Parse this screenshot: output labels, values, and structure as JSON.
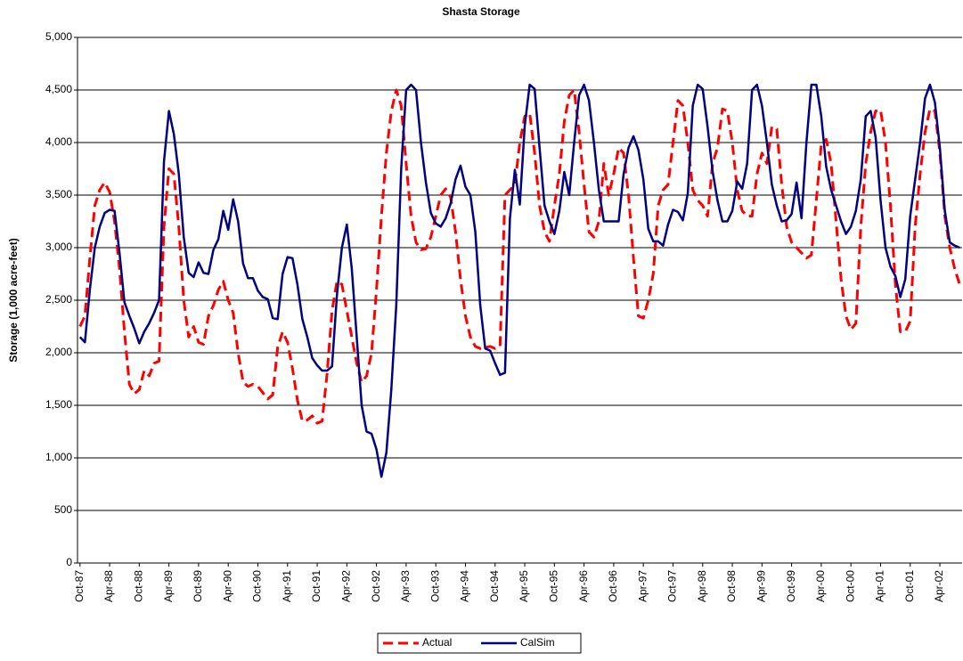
{
  "chart_data": {
    "type": "line",
    "title": "Shasta Storage",
    "y_label": "Storage (1,000 acre-feet)",
    "categories": [
      "Oct-87",
      null,
      null,
      null,
      null,
      null,
      "Apr-88",
      null,
      null,
      null,
      null,
      null,
      "Oct-88",
      null,
      null,
      null,
      null,
      null,
      "Apr-89",
      null,
      null,
      null,
      null,
      null,
      "Oct-89",
      null,
      null,
      null,
      null,
      null,
      "Apr-90",
      null,
      null,
      null,
      null,
      null,
      "Oct-90",
      null,
      null,
      null,
      null,
      null,
      "Apr-91",
      null,
      null,
      null,
      null,
      null,
      "Oct-91",
      null,
      null,
      null,
      null,
      null,
      "Apr-92",
      null,
      null,
      null,
      null,
      null,
      "Oct-92",
      null,
      null,
      null,
      null,
      null,
      "Apr-93",
      null,
      null,
      null,
      null,
      null,
      "Oct-93",
      null,
      null,
      null,
      null,
      null,
      "Apr-94",
      null,
      null,
      null,
      null,
      null,
      "Oct-94",
      null,
      null,
      null,
      null,
      null,
      "Apr-95",
      null,
      null,
      null,
      null,
      null,
      "Oct-95",
      null,
      null,
      null,
      null,
      null,
      "Apr-96",
      null,
      null,
      null,
      null,
      null,
      "Oct-96",
      null,
      null,
      null,
      null,
      null,
      "Apr-97",
      null,
      null,
      null,
      null,
      null,
      "Oct-97",
      null,
      null,
      null,
      null,
      null,
      "Apr-98",
      null,
      null,
      null,
      null,
      null,
      "Oct-98",
      null,
      null,
      null,
      null,
      null,
      "Apr-99",
      null,
      null,
      null,
      null,
      null,
      "Oct-99",
      null,
      null,
      null,
      null,
      null,
      "Apr-00",
      null,
      null,
      null,
      null,
      null,
      "Oct-00",
      null,
      null,
      null,
      null,
      null,
      "Apr-01",
      null,
      null,
      null,
      null,
      null,
      "Oct-01",
      null,
      null,
      null,
      null,
      null,
      "Apr-02",
      null,
      null,
      null,
      null
    ],
    "series": [
      {
        "name": "Actual",
        "color": "#ff0000",
        "dashed": true,
        "values": [
          2250,
          2350,
          2900,
          3400,
          3550,
          3620,
          3530,
          3250,
          2800,
          2200,
          1700,
          1610,
          1650,
          1830,
          1780,
          1900,
          1920,
          3200,
          3750,
          3700,
          3200,
          2500,
          2150,
          2250,
          2100,
          2080,
          2350,
          2450,
          2600,
          2680,
          2500,
          2380,
          2000,
          1720,
          1680,
          1700,
          1680,
          1620,
          1560,
          1600,
          2050,
          2200,
          2100,
          1850,
          1550,
          1350,
          1360,
          1400,
          1330,
          1350,
          1800,
          2400,
          2680,
          2650,
          2400,
          2150,
          1900,
          1720,
          1780,
          2000,
          2600,
          3300,
          3900,
          4300,
          4500,
          4350,
          3800,
          3300,
          3050,
          2980,
          2990,
          3100,
          3300,
          3500,
          3560,
          3480,
          3150,
          2700,
          2350,
          2150,
          2060,
          2040,
          2050,
          2060,
          2040,
          2060,
          3500,
          3550,
          3600,
          4000,
          4250,
          4280,
          3900,
          3400,
          3150,
          3060,
          3400,
          3700,
          4200,
          4450,
          4500,
          4100,
          3600,
          3150,
          3100,
          3250,
          3800,
          3500,
          3700,
          3950,
          3900,
          3500,
          2900,
          2350,
          2330,
          2500,
          2750,
          3400,
          3550,
          3600,
          4000,
          4400,
          4350,
          4000,
          3550,
          3450,
          3400,
          3300,
          3800,
          3950,
          4320,
          4300,
          4000,
          3550,
          3350,
          3300,
          3300,
          3700,
          3900,
          3800,
          4150,
          4130,
          3600,
          3200,
          3050,
          3000,
          2950,
          2900,
          2930,
          3450,
          3980,
          4030,
          3800,
          3250,
          2700,
          2350,
          2220,
          2280,
          3200,
          3800,
          4100,
          4300,
          4310,
          4000,
          3400,
          2650,
          2200,
          2200,
          2300,
          3200,
          3700,
          4100,
          4320,
          4300,
          3900,
          3300,
          3000,
          2800,
          2650
        ]
      },
      {
        "name": "CalSim",
        "color": "#000080",
        "dashed": false,
        "values": [
          2150,
          2100,
          2600,
          3000,
          3200,
          3330,
          3360,
          3350,
          2950,
          2480,
          2350,
          2230,
          2090,
          2200,
          2280,
          2380,
          2500,
          3820,
          4300,
          4080,
          3700,
          3100,
          2760,
          2720,
          2860,
          2760,
          2750,
          2980,
          3080,
          3350,
          3170,
          3460,
          3250,
          2850,
          2710,
          2710,
          2590,
          2530,
          2510,
          2330,
          2320,
          2750,
          2910,
          2900,
          2650,
          2320,
          2150,
          1950,
          1880,
          1830,
          1830,
          1870,
          2550,
          3000,
          3220,
          2800,
          2150,
          1500,
          1250,
          1230,
          1080,
          820,
          1050,
          1650,
          2450,
          3750,
          4500,
          4550,
          4500,
          4000,
          3620,
          3330,
          3230,
          3200,
          3280,
          3420,
          3650,
          3780,
          3580,
          3500,
          3150,
          2450,
          2040,
          2020,
          1900,
          1790,
          1810,
          3280,
          3740,
          3410,
          4160,
          4550,
          4510,
          3950,
          3400,
          3250,
          3130,
          3350,
          3720,
          3500,
          4000,
          4450,
          4550,
          4400,
          4000,
          3550,
          3250,
          3250,
          3250,
          3250,
          3700,
          3950,
          4060,
          3930,
          3650,
          3180,
          3060,
          3060,
          3020,
          3220,
          3360,
          3340,
          3260,
          3520,
          4350,
          4550,
          4510,
          4150,
          3730,
          3450,
          3250,
          3250,
          3350,
          3630,
          3560,
          3800,
          4500,
          4550,
          4350,
          4000,
          3600,
          3400,
          3250,
          3260,
          3320,
          3620,
          3280,
          4000,
          4550,
          4550,
          4250,
          3770,
          3550,
          3400,
          3250,
          3130,
          3200,
          3350,
          3650,
          4250,
          4300,
          4050,
          3450,
          3000,
          2820,
          2730,
          2530,
          2700,
          3300,
          3650,
          4000,
          4420,
          4550,
          4380,
          3950,
          3350,
          3050,
          3020,
          3000
        ]
      }
    ],
    "ylim": [
      0,
      5000
    ],
    "yticks": [
      0,
      500,
      {
        "value": 1000,
        "label": "1,000"
      },
      {
        "value": 1500,
        "label": "1,500"
      },
      {
        "value": 2000,
        "label": "2,000"
      },
      {
        "value": 2500,
        "label": "2,500"
      },
      {
        "value": 3000,
        "label": "3,000"
      },
      {
        "value": 3500,
        "label": "3,500"
      },
      {
        "value": 4000,
        "label": "4,000"
      },
      {
        "value": 4500,
        "label": "4,500"
      },
      {
        "value": 5000,
        "label": "5,000"
      }
    ],
    "grid": true,
    "legend": "bottom"
  }
}
